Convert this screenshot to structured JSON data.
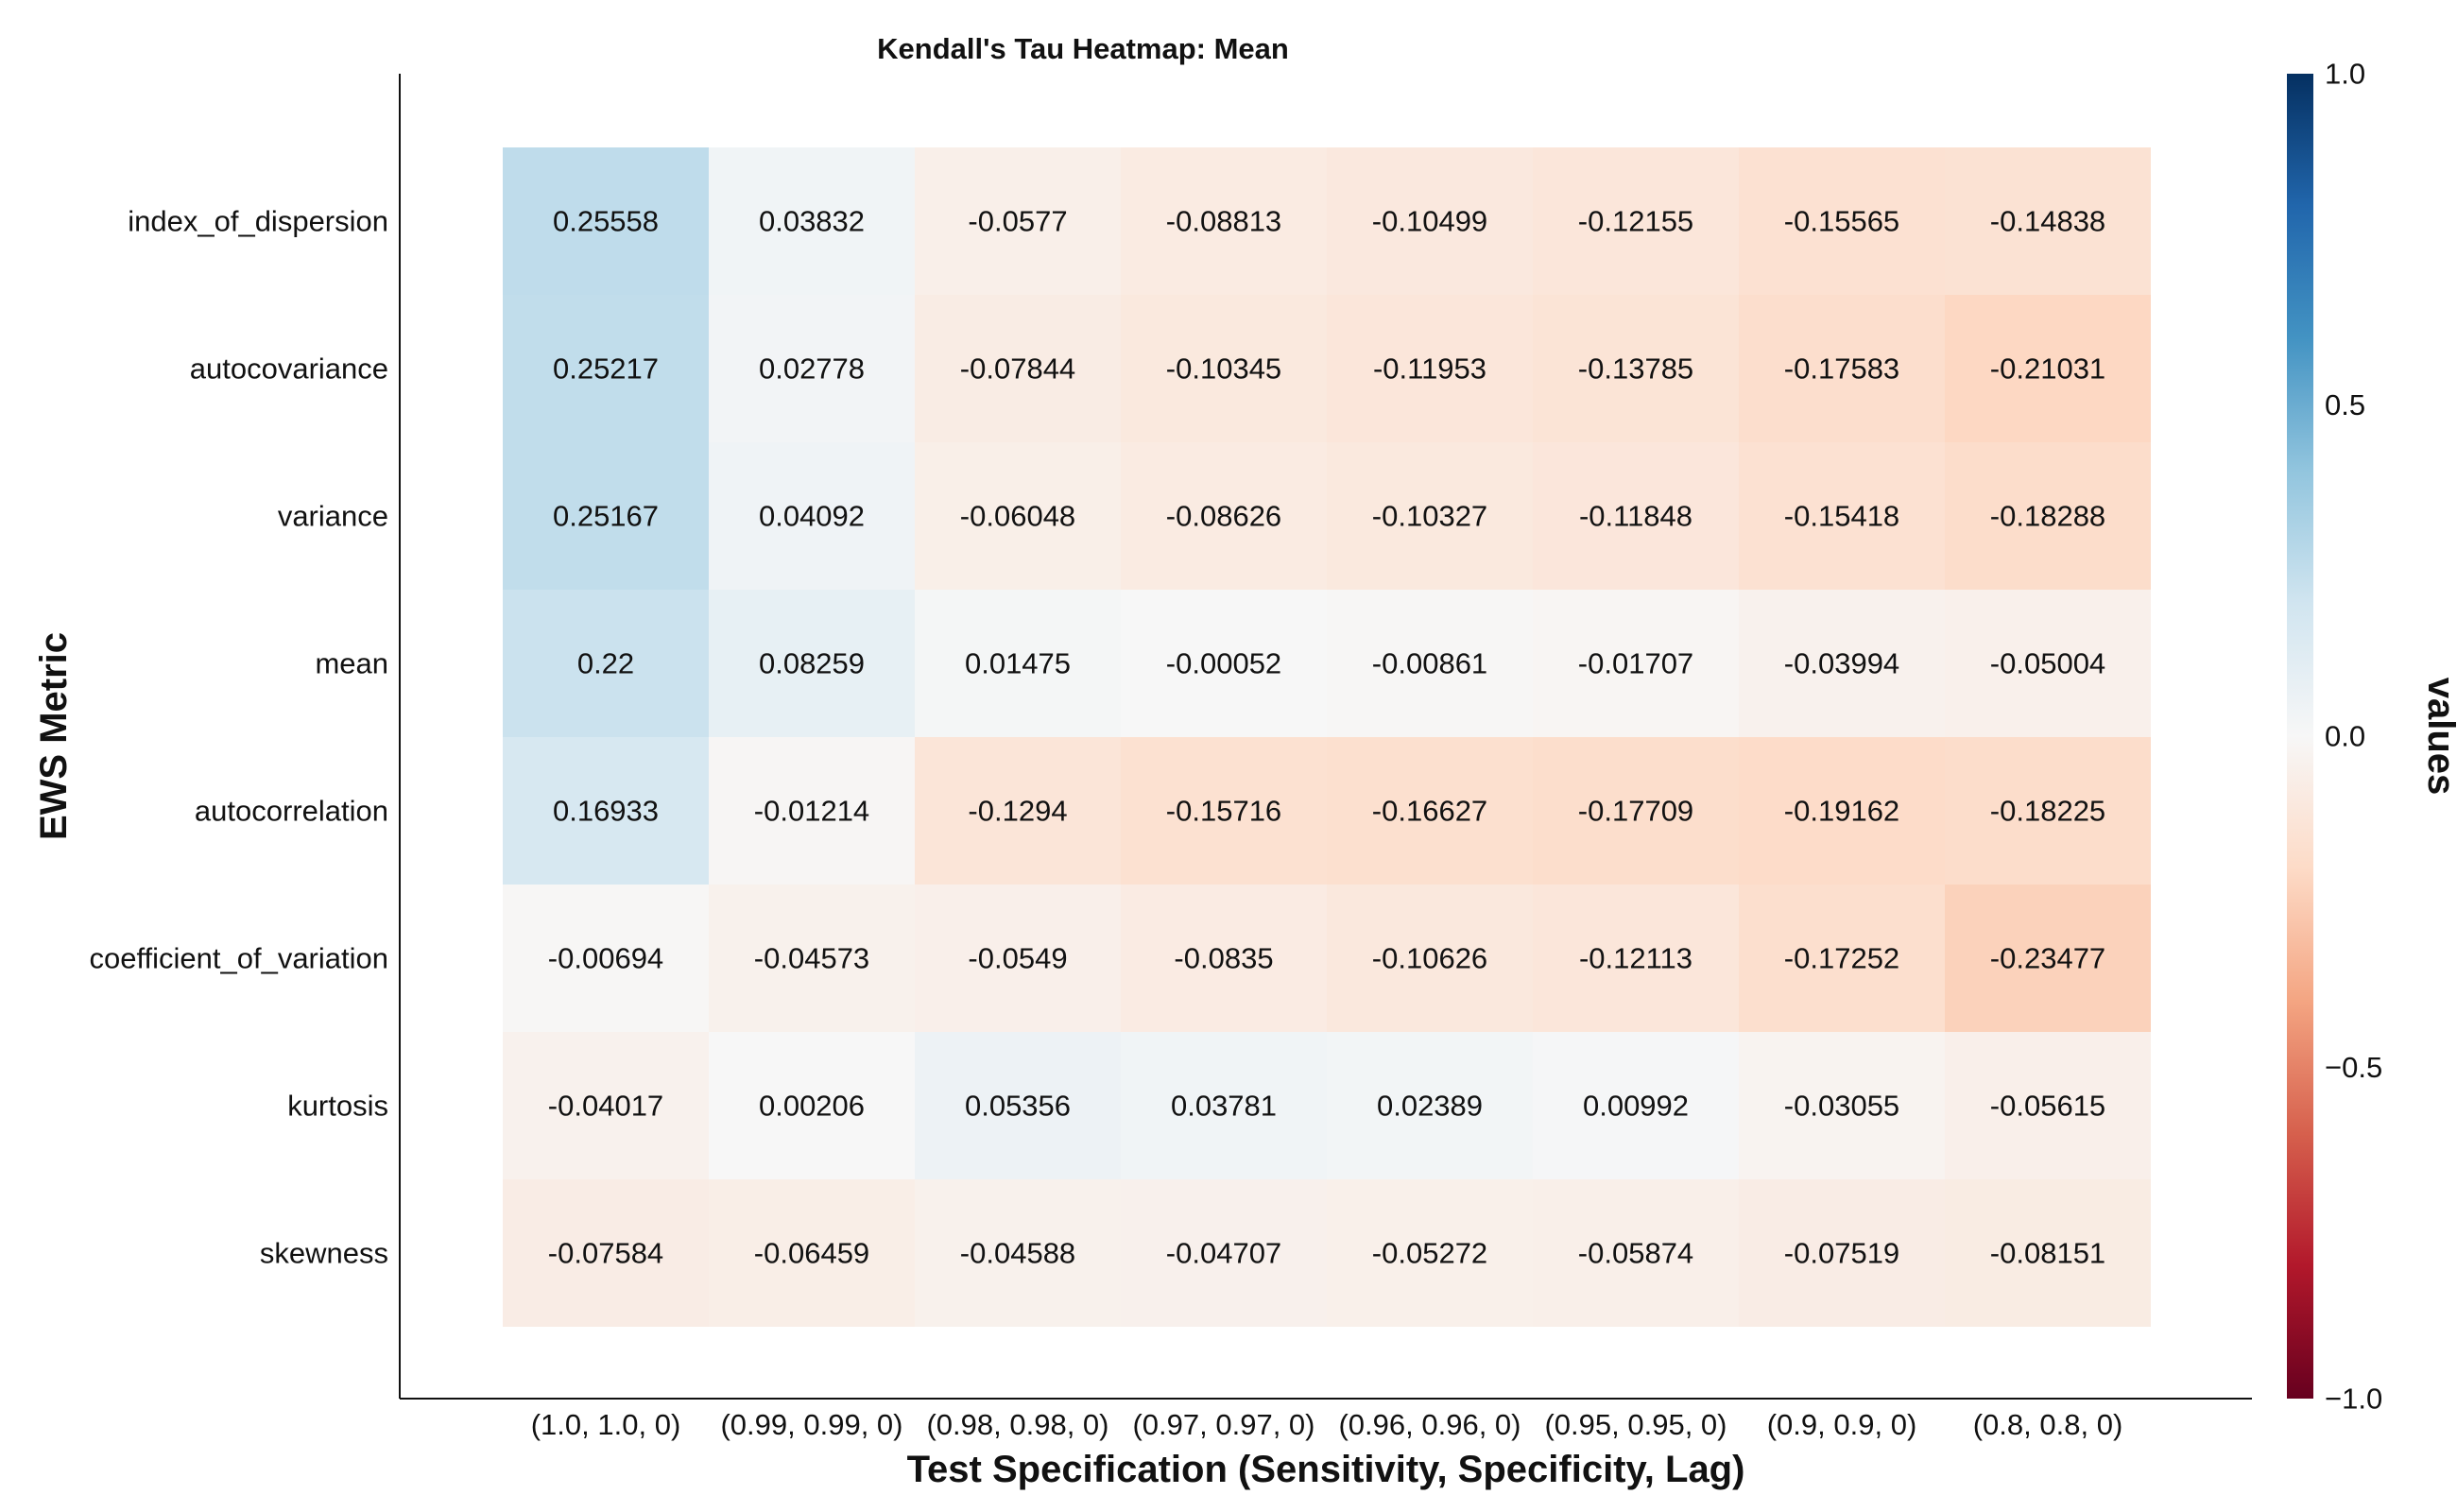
{
  "chart_data": {
    "type": "heatmap",
    "title": "Kendall's Tau Heatmap: Mean",
    "xlabel": "Test Specification (Sensitivity, Specificity, Lag)",
    "ylabel": "EWS Metric",
    "colorbar_label": "values",
    "colormap": "RdBu",
    "clim": [
      -1.0,
      1.0
    ],
    "colorbar_ticks": [
      "1.0",
      "0.5",
      "0.0",
      "−0.5",
      "−1.0"
    ],
    "x_categories": [
      "(1.0, 1.0, 0)",
      "(0.99, 0.99, 0)",
      "(0.98, 0.98, 0)",
      "(0.97, 0.97, 0)",
      "(0.96, 0.96, 0)",
      "(0.95, 0.95, 0)",
      "(0.9, 0.9, 0)",
      "(0.8, 0.8, 0)"
    ],
    "y_categories": [
      "index_of_dispersion",
      "autocovariance",
      "variance",
      "mean",
      "autocorrelation",
      "coefficient_of_variation",
      "kurtosis",
      "skewness"
    ],
    "values": [
      [
        0.25558,
        0.03832,
        -0.0577,
        -0.08813,
        -0.10499,
        -0.12155,
        -0.15565,
        -0.14838
      ],
      [
        0.25217,
        0.02778,
        -0.07844,
        -0.10345,
        -0.11953,
        -0.13785,
        -0.17583,
        -0.21031
      ],
      [
        0.25167,
        0.04092,
        -0.06048,
        -0.08626,
        -0.10327,
        -0.11848,
        -0.15418,
        -0.18288
      ],
      [
        0.22,
        0.08259,
        0.01475,
        -0.00052,
        -0.00861,
        -0.01707,
        -0.03994,
        -0.05004
      ],
      [
        0.16933,
        -0.01214,
        -0.1294,
        -0.15716,
        -0.16627,
        -0.17709,
        -0.19162,
        -0.18225
      ],
      [
        -0.00694,
        -0.04573,
        -0.0549,
        -0.0835,
        -0.10626,
        -0.12113,
        -0.17252,
        -0.23477
      ],
      [
        -0.04017,
        0.00206,
        0.05356,
        0.03781,
        0.02389,
        0.00992,
        -0.03055,
        -0.05615
      ],
      [
        -0.07584,
        -0.06459,
        -0.04588,
        -0.04707,
        -0.05272,
        -0.05874,
        -0.07519,
        -0.08151
      ]
    ],
    "value_labels": [
      [
        "0.25558",
        "0.03832",
        "-0.0577",
        "-0.08813",
        "-0.10499",
        "-0.12155",
        "-0.15565",
        "-0.14838"
      ],
      [
        "0.25217",
        "0.02778",
        "-0.07844",
        "-0.10345",
        "-0.11953",
        "-0.13785",
        "-0.17583",
        "-0.21031"
      ],
      [
        "0.25167",
        "0.04092",
        "-0.06048",
        "-0.08626",
        "-0.10327",
        "-0.11848",
        "-0.15418",
        "-0.18288"
      ],
      [
        "0.22",
        "0.08259",
        "0.01475",
        "-0.00052",
        "-0.00861",
        "-0.01707",
        "-0.03994",
        "-0.05004"
      ],
      [
        "0.16933",
        "-0.01214",
        "-0.1294",
        "-0.15716",
        "-0.16627",
        "-0.17709",
        "-0.19162",
        "-0.18225"
      ],
      [
        "-0.00694",
        "-0.04573",
        "-0.0549",
        "-0.0835",
        "-0.10626",
        "-0.12113",
        "-0.17252",
        "-0.23477"
      ],
      [
        "-0.04017",
        "0.00206",
        "0.05356",
        "0.03781",
        "0.02389",
        "0.00992",
        "-0.03055",
        "-0.05615"
      ],
      [
        "-0.07584",
        "-0.06459",
        "-0.04588",
        "-0.04707",
        "-0.05272",
        "-0.05874",
        "-0.07519",
        "-0.08151"
      ]
    ],
    "grid": false
  }
}
